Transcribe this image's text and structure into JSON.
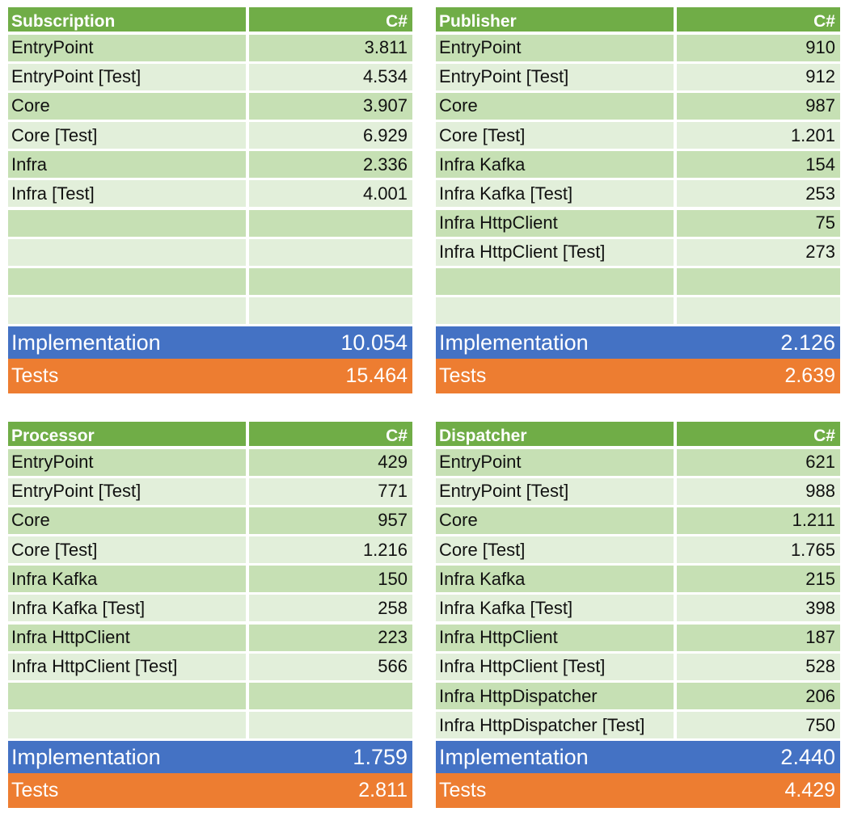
{
  "tables": [
    {
      "title": "Subscription",
      "lang": "C#",
      "rows": [
        {
          "name": "EntryPoint",
          "value": "3.811"
        },
        {
          "name": "EntryPoint [Test]",
          "value": "4.534"
        },
        {
          "name": "Core",
          "value": "3.907"
        },
        {
          "name": "Core [Test]",
          "value": "6.929"
        },
        {
          "name": "Infra",
          "value": "2.336"
        },
        {
          "name": "Infra [Test]",
          "value": "4.001"
        },
        {
          "name": "",
          "value": ""
        },
        {
          "name": "",
          "value": ""
        },
        {
          "name": "",
          "value": ""
        },
        {
          "name": "",
          "value": ""
        }
      ],
      "implementation_label": "Implementation",
      "implementation_value": "10.054",
      "tests_label": "Tests",
      "tests_value": "15.464"
    },
    {
      "title": "Publisher",
      "lang": "C#",
      "rows": [
        {
          "name": "EntryPoint",
          "value": "910"
        },
        {
          "name": "EntryPoint [Test]",
          "value": "912"
        },
        {
          "name": "Core",
          "value": "987"
        },
        {
          "name": "Core [Test]",
          "value": "1.201"
        },
        {
          "name": "Infra Kafka",
          "value": "154"
        },
        {
          "name": "Infra Kafka [Test]",
          "value": "253"
        },
        {
          "name": "Infra HttpClient",
          "value": "75"
        },
        {
          "name": "Infra HttpClient [Test]",
          "value": "273"
        },
        {
          "name": "",
          "value": ""
        },
        {
          "name": "",
          "value": ""
        }
      ],
      "implementation_label": "Implementation",
      "implementation_value": "2.126",
      "tests_label": "Tests",
      "tests_value": "2.639"
    },
    {
      "title": "Processor",
      "lang": "C#",
      "rows": [
        {
          "name": "EntryPoint",
          "value": "429"
        },
        {
          "name": "EntryPoint [Test]",
          "value": "771"
        },
        {
          "name": "Core",
          "value": "957"
        },
        {
          "name": "Core [Test]",
          "value": "1.216"
        },
        {
          "name": "Infra Kafka",
          "value": "150"
        },
        {
          "name": "Infra Kafka [Test]",
          "value": "258"
        },
        {
          "name": "Infra HttpClient",
          "value": "223"
        },
        {
          "name": "Infra HttpClient [Test]",
          "value": "566"
        },
        {
          "name": "",
          "value": ""
        },
        {
          "name": "",
          "value": ""
        }
      ],
      "implementation_label": "Implementation",
      "implementation_value": "1.759",
      "tests_label": "Tests",
      "tests_value": "2.811"
    },
    {
      "title": "Dispatcher",
      "lang": "C#",
      "rows": [
        {
          "name": "EntryPoint",
          "value": "621"
        },
        {
          "name": "EntryPoint [Test]",
          "value": "988"
        },
        {
          "name": "Core",
          "value": "1.211"
        },
        {
          "name": "Core [Test]",
          "value": "1.765"
        },
        {
          "name": "Infra Kafka",
          "value": "215"
        },
        {
          "name": "Infra Kafka [Test]",
          "value": "398"
        },
        {
          "name": "Infra HttpClient",
          "value": "187"
        },
        {
          "name": "Infra HttpClient [Test]",
          "value": "528"
        },
        {
          "name": "Infra HttpDispatcher",
          "value": "206"
        },
        {
          "name": "Infra HttpDispatcher [Test]",
          "value": "750"
        }
      ],
      "implementation_label": "Implementation",
      "implementation_value": "2.440",
      "tests_label": "Tests",
      "tests_value": "4.429"
    }
  ],
  "colors": {
    "header": "#70ad47",
    "row_dark": "#c6e0b4",
    "row_light": "#e2efda",
    "implementation": "#4472c4",
    "tests": "#ed7d31"
  }
}
